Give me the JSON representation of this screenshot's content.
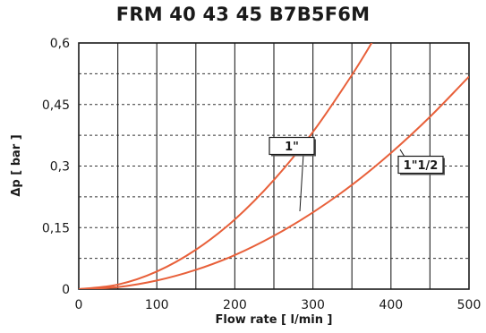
{
  "chart_data": {
    "type": "line",
    "title": "FRM 40 43 45 B7B5F6M",
    "xlabel": "Flow rate [ l/min ]",
    "ylabel": "Δp [ bar ]",
    "xlim": [
      0,
      500
    ],
    "ylim": [
      0,
      0.6
    ],
    "x_ticks": [
      0,
      100,
      200,
      300,
      400,
      500
    ],
    "x_tick_labels": [
      "0",
      "100",
      "200",
      "300",
      "400",
      "500"
    ],
    "y_ticks": [
      0,
      0.15,
      0.3,
      0.45,
      0.6
    ],
    "y_tick_labels": [
      "0",
      "0,15",
      "0,3",
      "0,45",
      "0,6"
    ],
    "grid": true,
    "line_color": "#e8603a",
    "series": [
      {
        "name": "1\"",
        "x": [
          0,
          50,
          100,
          150,
          200,
          250,
          300,
          350,
          380,
          394
        ],
        "y": [
          0,
          0.011,
          0.043,
          0.096,
          0.17,
          0.266,
          0.383,
          0.522,
          0.615,
          0.66
        ]
      },
      {
        "name": "1\"1/2",
        "x": [
          0,
          50,
          100,
          150,
          200,
          250,
          300,
          350,
          400,
          450,
          500
        ],
        "y": [
          0,
          0.005,
          0.021,
          0.047,
          0.083,
          0.13,
          0.187,
          0.254,
          0.332,
          0.42,
          0.518
        ]
      }
    ]
  }
}
